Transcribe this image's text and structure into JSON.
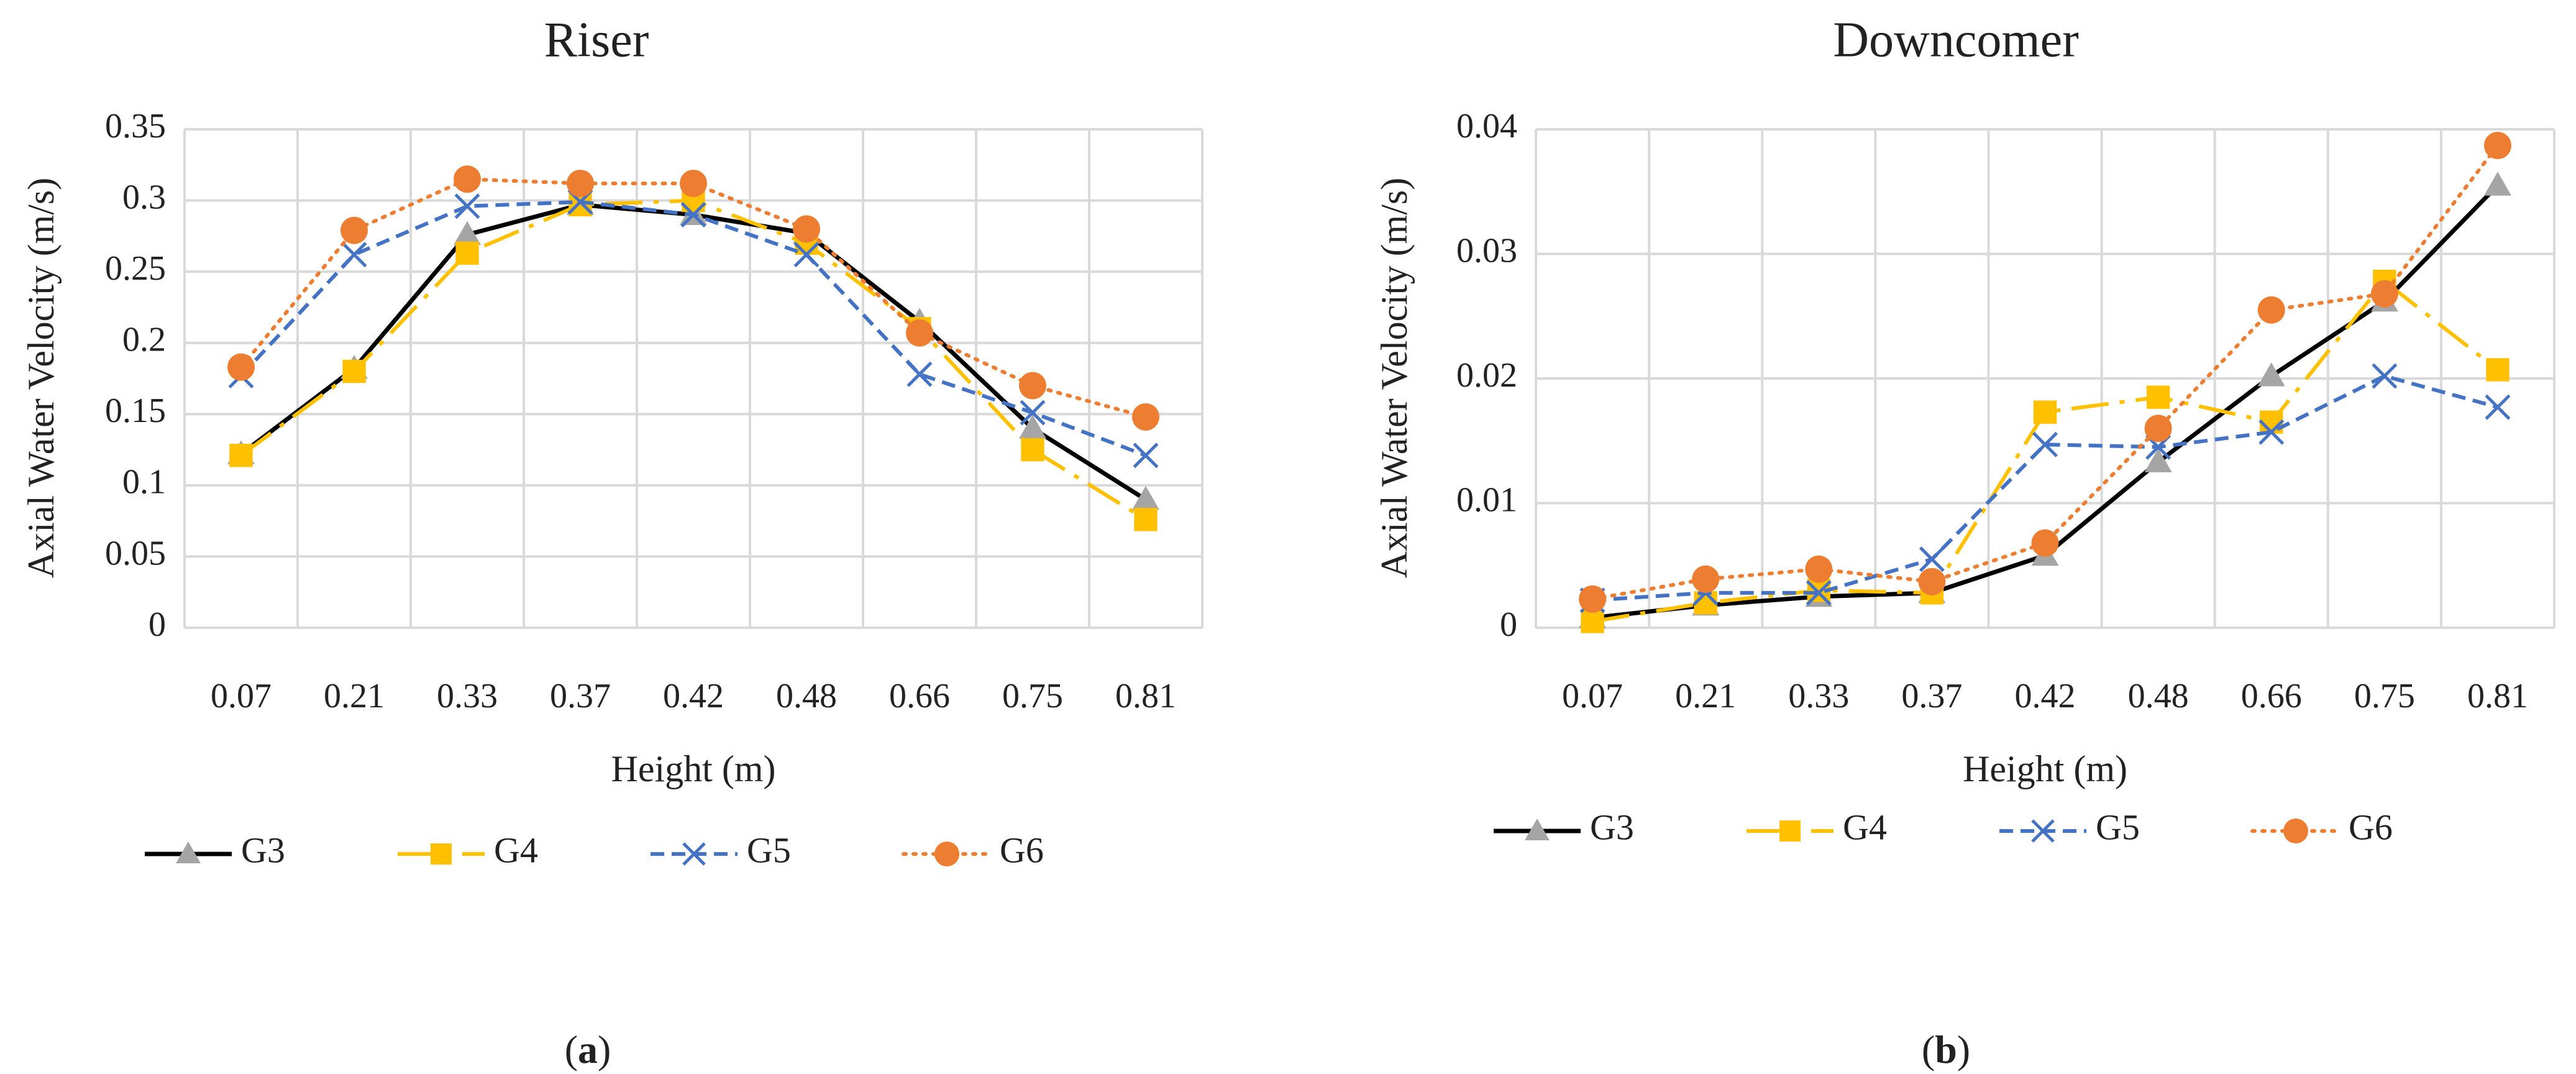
{
  "chart_data": [
    {
      "type": "line",
      "title": "Riser",
      "xlabel": "Height (m)",
      "ylabel": "Axial Water Velocity (m/s)",
      "categories": [
        "0.07",
        "0.21",
        "0.33",
        "0.37",
        "0.42",
        "0.48",
        "0.66",
        "0.75",
        "0.81"
      ],
      "ylim": [
        0,
        0.35
      ],
      "yticks": [
        0,
        0.05,
        0.1,
        0.15,
        0.2,
        0.25,
        0.3,
        0.35
      ],
      "ytick_labels": [
        "0",
        "0.05",
        "0.1",
        "0.15",
        "0.2",
        "0.25",
        "0.3",
        "0.35"
      ],
      "grid": true,
      "legend": "bottom",
      "panel_label": "a",
      "series": [
        {
          "name": "G3",
          "values": [
            0.122,
            0.182,
            0.276,
            0.297,
            0.29,
            0.277,
            0.215,
            0.14,
            0.09
          ]
        },
        {
          "name": "G4",
          "values": [
            0.121,
            0.18,
            0.263,
            0.297,
            0.3,
            0.27,
            0.21,
            0.125,
            0.076
          ]
        },
        {
          "name": "G5",
          "values": [
            0.177,
            0.262,
            0.296,
            0.299,
            0.29,
            0.262,
            0.178,
            0.151,
            0.121
          ]
        },
        {
          "name": "G6",
          "values": [
            0.183,
            0.279,
            0.315,
            0.312,
            0.312,
            0.28,
            0.207,
            0.17,
            0.148
          ]
        }
      ]
    },
    {
      "type": "line",
      "title": "Downcomer",
      "xlabel": "Height (m)",
      "ylabel": "Axial Water Velocity (m/s)",
      "categories": [
        "0.07",
        "0.21",
        "0.33",
        "0.37",
        "0.42",
        "0.48",
        "0.66",
        "0.75",
        "0.81"
      ],
      "ylim": [
        0,
        0.04
      ],
      "yticks": [
        0,
        0.01,
        0.02,
        0.03,
        0.04
      ],
      "ytick_labels": [
        "0",
        "0.01",
        "0.02",
        "0.03",
        "0.04"
      ],
      "grid": true,
      "legend": "bottom",
      "panel_label": "b",
      "series": [
        {
          "name": "G3",
          "values": [
            0.0008,
            0.0018,
            0.0025,
            0.0028,
            0.0058,
            0.0133,
            0.0202,
            0.0262,
            0.0355
          ]
        },
        {
          "name": "G4",
          "values": [
            0.0005,
            0.002,
            0.003,
            0.0028,
            0.0173,
            0.0185,
            0.0165,
            0.0278,
            0.0207
          ]
        },
        {
          "name": "G5",
          "values": [
            0.0022,
            0.0028,
            0.0028,
            0.0055,
            0.0147,
            0.0145,
            0.0157,
            0.0202,
            0.0177
          ]
        },
        {
          "name": "G6",
          "values": [
            0.0023,
            0.0039,
            0.0047,
            0.0037,
            0.0068,
            0.016,
            0.0255,
            0.0268,
            0.0387
          ]
        }
      ]
    }
  ],
  "styles": {
    "G3": {
      "color": "#000000",
      "marker": "triangle",
      "marker_color": "#a5a5a5",
      "dash": "solid"
    },
    "G4": {
      "color": "#ffc000",
      "marker": "square",
      "marker_color": "#ffc000",
      "dash": "longdashdot"
    },
    "G5": {
      "color": "#4472c4",
      "marker": "x",
      "marker_color": "#4472c4",
      "dash": "dash"
    },
    "G6": {
      "color": "#ed7d31",
      "marker": "circle",
      "marker_color": "#ed7d31",
      "dash": "dot"
    },
    "grid_color": "#d9d9d9"
  }
}
